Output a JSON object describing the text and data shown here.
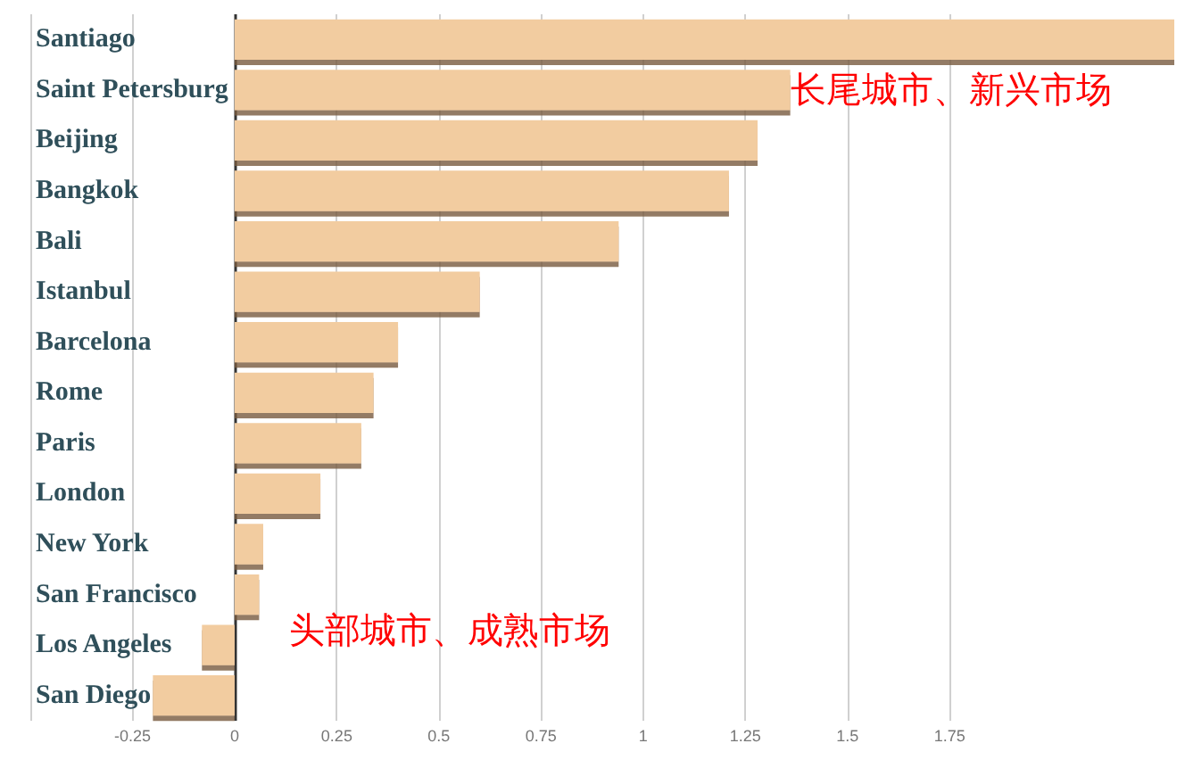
{
  "chart_data": {
    "type": "bar",
    "orientation": "horizontal",
    "categories": [
      "Santiago",
      "Saint Petersburg",
      "Beijing",
      "Bangkok",
      "Bali",
      "Istanbul",
      "Barcelona",
      "Rome",
      "Paris",
      "London",
      "New York",
      "San Francisco",
      "Los Angeles",
      "San Diego"
    ],
    "values": [
      2.3,
      1.36,
      1.28,
      1.21,
      0.94,
      0.6,
      0.4,
      0.34,
      0.31,
      0.21,
      0.07,
      0.06,
      -0.08,
      -0.2
    ],
    "color": "#f2cca0",
    "xlim": [
      -0.5,
      2.3
    ],
    "xticks": [
      {
        "value": -0.5,
        "label": null
      },
      -0.25,
      0,
      0.25,
      0.5,
      0.75,
      1,
      1.25,
      1.5,
      1.75
    ],
    "grid": "x",
    "annotations": [
      "长尾城市、新兴市场",
      "头部城市、成熟市场"
    ]
  }
}
